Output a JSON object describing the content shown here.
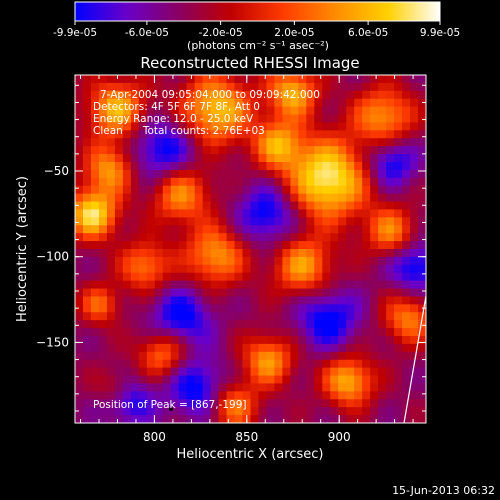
{
  "colorbar": {
    "tick_labels": [
      "-9.9e-05",
      "-6.0e-05",
      "-2.0e-05",
      "2.0e-05",
      "6.0e-05",
      "9.9e-05"
    ],
    "tick_values": [
      -9.9e-05,
      -6e-05,
      -2e-05,
      2e-05,
      6e-05,
      9.9e-05
    ],
    "range": [
      -9.9e-05,
      9.9e-05
    ],
    "unit_label": "(photons cm⁻² s⁻¹ asec⁻²)",
    "colors": [
      "#0000ff",
      "#6a00c8",
      "#8a0060",
      "#c00000",
      "#ff3c00",
      "#ff8c00",
      "#ffd000",
      "#ffffff"
    ]
  },
  "chart_data": {
    "type": "heatmap",
    "title": "Reconstructed RHESSI Image",
    "xlabel": "Heliocentric X (arcsec)",
    "ylabel": "Heliocentric Y (arcsec)",
    "xlim": [
      757,
      947
    ],
    "ylim": [
      -197,
      6
    ],
    "xticks": [
      800,
      850,
      900
    ],
    "xtick_labels": [
      "800",
      "850",
      "900"
    ],
    "yticks": [
      -50,
      -100,
      -150
    ],
    "ytick_labels": [
      "−50",
      "−100",
      "−150"
    ],
    "annotations": [
      "7-Apr-2004 09:05:04.000 to 09:09:42.000",
      "Detectors: 4F 5F 6F 7F 8F, Att 0",
      "Energy Range: 12.0 - 25.0 keV",
      "Clean      Total counts: 2.76E+03"
    ],
    "peak_label": "Position of Peak = [867,-199]",
    "peak": [
      867,
      -199
    ],
    "value_range": [
      -9.9e-05,
      9.9e-05
    ]
  },
  "footer": {
    "timestamp": "15-Jun-2013 06:32"
  }
}
